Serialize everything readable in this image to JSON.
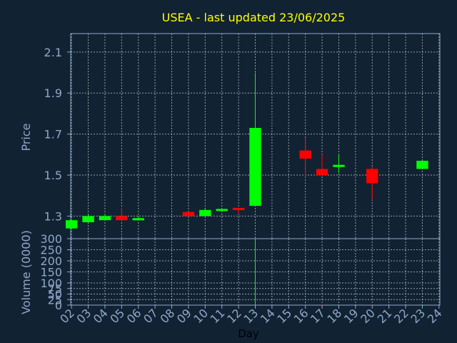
{
  "chart_data": {
    "type": "candlestick",
    "title": "USEA - last updated 23/06/2025",
    "price_panel": {
      "ylabel": "Price",
      "yticks": [
        "1.3",
        "1.5",
        "1.7",
        "1.9",
        "2.1"
      ],
      "ylim": [
        1.19,
        2.19
      ]
    },
    "volume_panel": {
      "ylabel": "Volume (0000)",
      "yticks": [
        "0",
        "25",
        "50",
        "75",
        "100",
        "150",
        "200",
        "250",
        "300"
      ],
      "ylim": [
        0,
        300
      ]
    },
    "xlabel": "Day",
    "xticks": [
      "02",
      "03",
      "04",
      "05",
      "06",
      "07",
      "08",
      "09",
      "10",
      "11",
      "12",
      "13",
      "14",
      "15",
      "16",
      "17",
      "18",
      "19",
      "20",
      "21",
      "22",
      "23",
      "24"
    ],
    "colors": {
      "up": "#00ff00",
      "down": "#ff0000",
      "background": "#112233",
      "title": "#ffff00",
      "axis_text": "#8fa8c8"
    },
    "candles": [
      {
        "day": "02",
        "open": 1.24,
        "close": 1.28,
        "high": 1.28,
        "low": 1.24,
        "volume": 1
      },
      {
        "day": "03",
        "open": 1.27,
        "close": 1.3,
        "high": 1.31,
        "low": 1.27,
        "volume": 1
      },
      {
        "day": "04",
        "open": 1.28,
        "close": 1.3,
        "high": 1.31,
        "low": 1.28,
        "volume": 1
      },
      {
        "day": "05",
        "open": 1.3,
        "close": 1.28,
        "high": 1.34,
        "low": 1.28,
        "volume": 1
      },
      {
        "day": "06",
        "open": 1.285,
        "close": 1.29,
        "high": 1.3,
        "low": 1.285,
        "volume": 1
      },
      {
        "day": "09",
        "open": 1.32,
        "close": 1.3,
        "high": 1.32,
        "low": 1.3,
        "volume": 1
      },
      {
        "day": "10",
        "open": 1.3,
        "close": 1.33,
        "high": 1.34,
        "low": 1.3,
        "volume": 1
      },
      {
        "day": "11",
        "open": 1.325,
        "close": 1.335,
        "high": 1.335,
        "low": 1.325,
        "volume": 1
      },
      {
        "day": "12",
        "open": 1.34,
        "close": 1.335,
        "high": 1.34,
        "low": 1.31,
        "volume": 1
      },
      {
        "day": "13",
        "open": 1.35,
        "close": 1.73,
        "high": 2.0,
        "low": 1.35,
        "volume": 300
      },
      {
        "day": "16",
        "open": 1.62,
        "close": 1.58,
        "high": 1.68,
        "low": 1.5,
        "volume": 8
      },
      {
        "day": "17",
        "open": 1.53,
        "close": 1.5,
        "high": 1.6,
        "low": 1.5,
        "volume": 3
      },
      {
        "day": "18",
        "open": 1.54,
        "close": 1.55,
        "high": 1.6,
        "low": 1.51,
        "volume": 2
      },
      {
        "day": "20",
        "open": 1.53,
        "close": 1.46,
        "high": 1.54,
        "low": 1.38,
        "volume": 2
      },
      {
        "day": "23",
        "open": 1.53,
        "close": 1.57,
        "high": 1.57,
        "low": 1.53,
        "volume": 2
      }
    ]
  }
}
